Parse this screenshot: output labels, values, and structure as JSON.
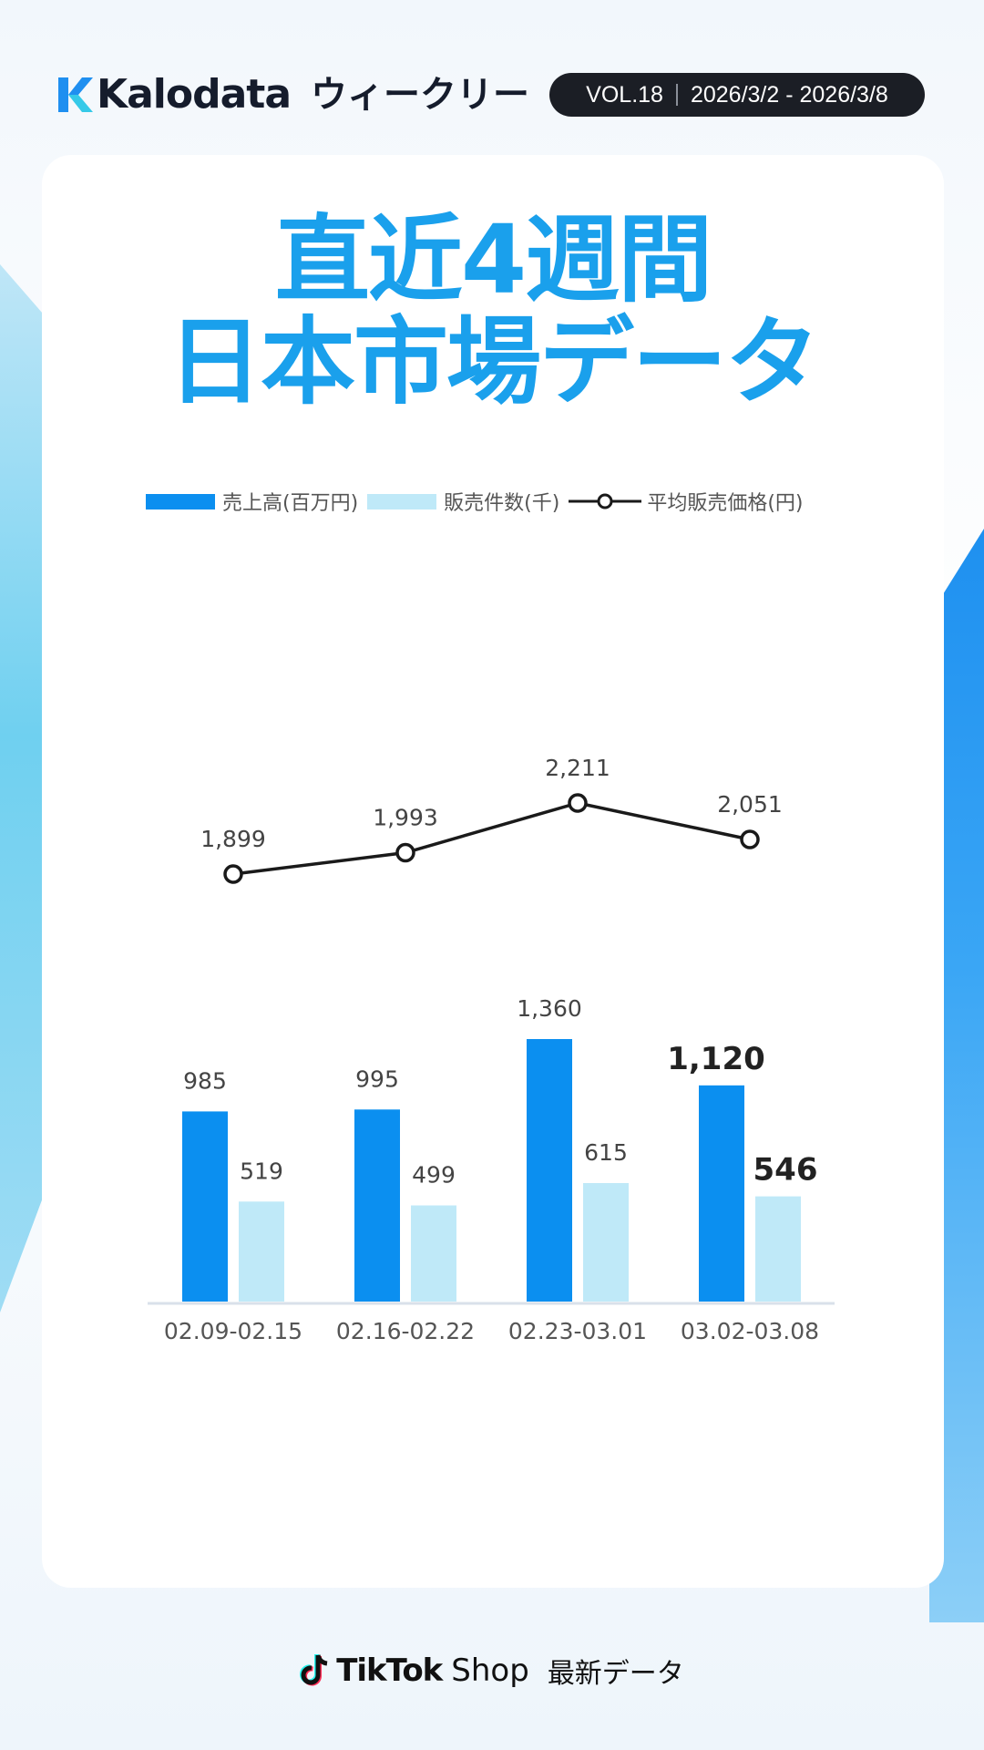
{
  "header": {
    "brand": "Kalodata",
    "weekly_label": "ウィークリー",
    "volume": "VOL.18",
    "date_range": "2026/3/2 - 2026/3/8"
  },
  "title": {
    "line1": "直近4週間",
    "line2": "日本市場データ"
  },
  "colors": {
    "sales": "#0b8ff0",
    "orders": "#bfe9f8",
    "price_line": "#1a1a1a",
    "title": "#1aa0ec"
  },
  "chart_data": {
    "type": "bar",
    "categories": [
      "02.09-02.15",
      "02.16-02.22",
      "02.23-03.01",
      "03.02-03.08"
    ],
    "series": [
      {
        "name": "売上高(百万円)",
        "type": "bar",
        "values": [
          985,
          995,
          1360,
          1120
        ],
        "labels": [
          "985",
          "995",
          "1,360",
          "1,120"
        ]
      },
      {
        "name": "販売件数(千)",
        "type": "bar",
        "values": [
          519,
          499,
          615,
          546
        ],
        "labels": [
          "519",
          "499",
          "615",
          "546"
        ]
      },
      {
        "name": "平均販売価格(円)",
        "type": "line",
        "values": [
          1899,
          1993,
          2211,
          2051
        ],
        "labels": [
          "1,899",
          "1,993",
          "2,211",
          "2,051"
        ]
      }
    ],
    "highlight_index": 3,
    "legend_position": "top",
    "grid": false
  },
  "footer": {
    "brand": "TikTok",
    "shop": "Shop",
    "tagline": "最新データ"
  }
}
